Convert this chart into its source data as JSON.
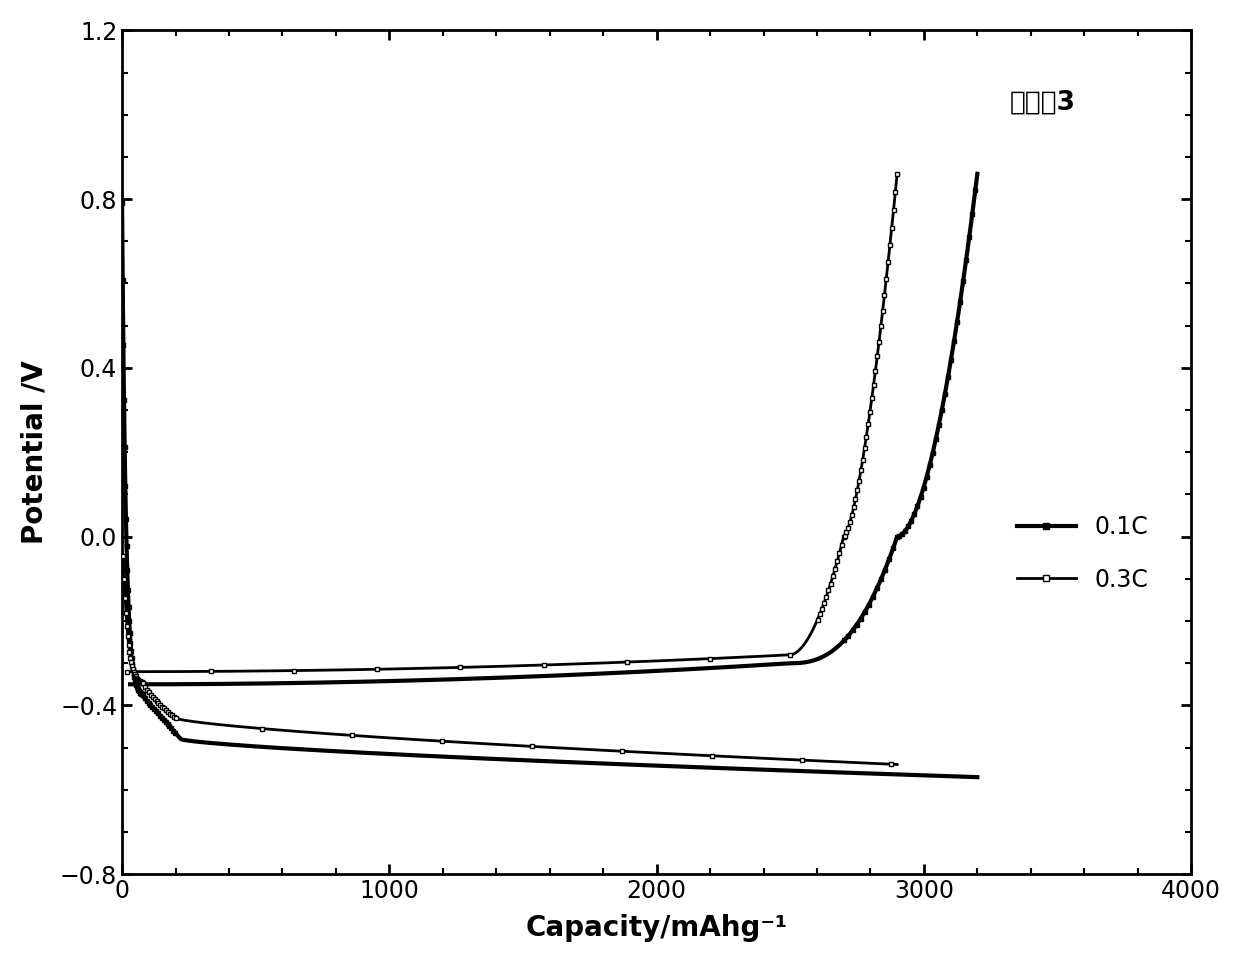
{
  "title_annotation": "实施例3",
  "xlabel": "Capacity/mAhg⁻¹",
  "ylabel": "Potential /V",
  "xlim": [
    0,
    4000
  ],
  "ylim": [
    -0.8,
    1.2
  ],
  "xticks": [
    0,
    1000,
    2000,
    3000,
    4000
  ],
  "yticks": [
    -0.8,
    -0.4,
    0.0,
    0.4,
    0.8,
    1.2
  ],
  "background_color": "#ffffff",
  "line_color": "#000000",
  "legend_01C": "0.1C",
  "legend_03C": "0.3C",
  "lw_01C": 3.0,
  "lw_03C": 2.0
}
